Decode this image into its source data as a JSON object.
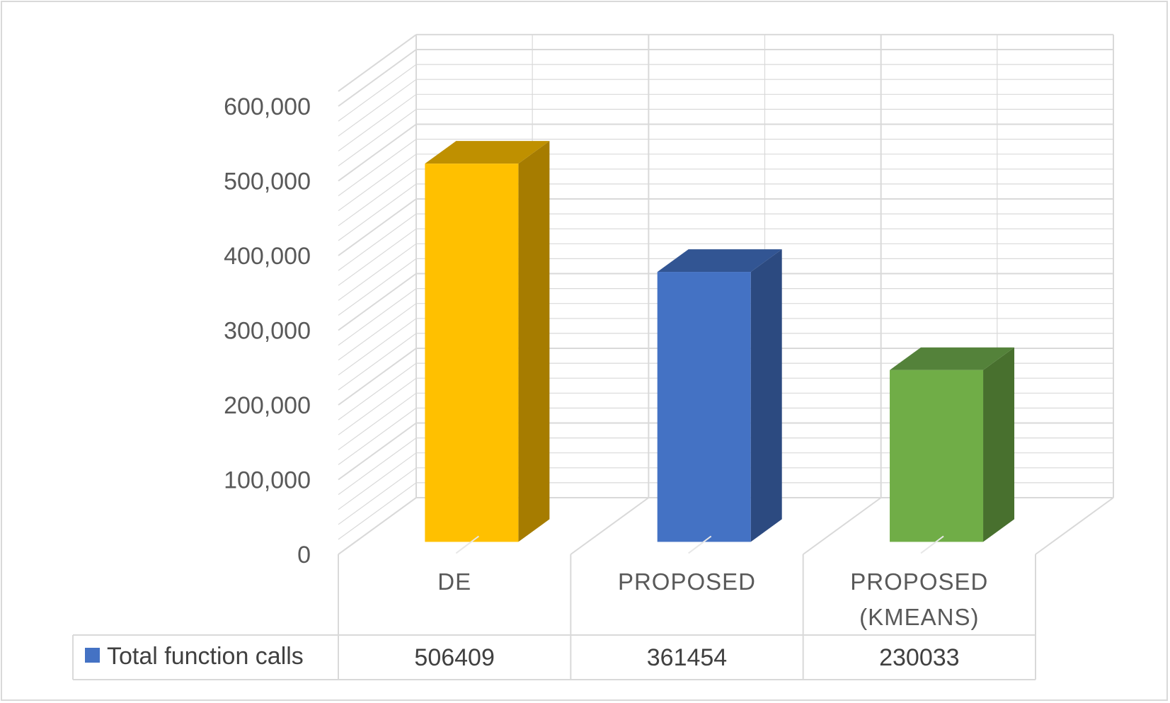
{
  "chart_data": {
    "type": "bar",
    "style": "3d-column-with-data-table",
    "categories": [
      "DE",
      "PROPOSED",
      "PROPOSED (KMEANS)"
    ],
    "category_lines": [
      [
        "DE"
      ],
      [
        "PROPOSED"
      ],
      [
        "PROPOSED",
        "(KMEANS)"
      ]
    ],
    "series": [
      {
        "name": "Total function calls",
        "values": [
          506409,
          361454,
          230033
        ],
        "legend_color": "#4472c4"
      }
    ],
    "bar_colors": [
      {
        "front": "#ffc000",
        "side": "#a67c00",
        "top": "#bf9000"
      },
      {
        "front": "#4472c4",
        "side": "#2c4a80",
        "top": "#325593"
      },
      {
        "front": "#70ad47",
        "side": "#48702e",
        "top": "#54823a"
      }
    ],
    "y_ticks": [
      0,
      100000,
      200000,
      300000,
      400000,
      500000,
      600000
    ],
    "y_tick_labels": [
      "0",
      "100,000",
      "200,000",
      "300,000",
      "400,000",
      "500,000",
      "600,000"
    ],
    "ylim": [
      0,
      600000
    ],
    "table_values": [
      "506409",
      "361454",
      "230033"
    ],
    "grid": true,
    "title": "",
    "xlabel": "",
    "ylabel": ""
  }
}
